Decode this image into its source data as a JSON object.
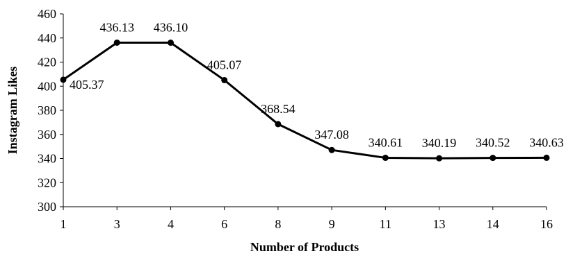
{
  "chart_data": {
    "type": "line",
    "title": "",
    "xlabel": "Number of Products",
    "ylabel": "Instagram Likes",
    "categories": [
      "1",
      "3",
      "4",
      "6",
      "8",
      "9",
      "11",
      "13",
      "14",
      "16"
    ],
    "values": [
      405.37,
      436.13,
      436.1,
      405.07,
      368.54,
      347.08,
      340.61,
      340.19,
      340.52,
      340.63
    ],
    "data_labels": [
      "405.37",
      "436.13",
      "436.10",
      "405.07",
      "368.54",
      "347.08",
      "340.61",
      "340.19",
      "340.52",
      "340.63"
    ],
    "ylim": [
      300,
      460
    ],
    "yticks": [
      300,
      320,
      340,
      360,
      380,
      400,
      420,
      440,
      460
    ],
    "grid": false,
    "legend": "none",
    "line_color": "#000000",
    "marker_color": "#000000"
  }
}
